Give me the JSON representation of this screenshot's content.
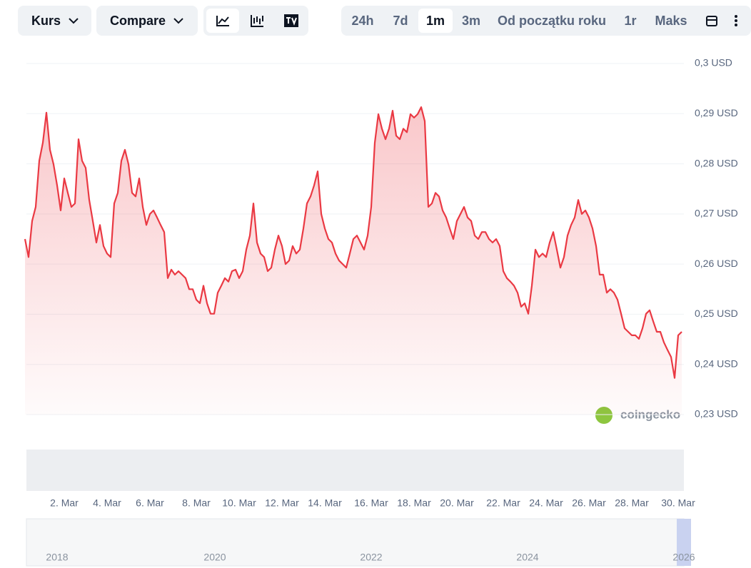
{
  "toolbar": {
    "price_menu": "Kurs",
    "compare_menu": "Compare",
    "ranges": [
      "24h",
      "7d",
      "1m",
      "3m",
      "Od początku roku",
      "1r",
      "Maks"
    ],
    "active_range": "1m"
  },
  "watermark": "coingecko",
  "navigator": {
    "labels": [
      "2018",
      "2020",
      "2022",
      "2024",
      "2026"
    ]
  },
  "chart_data": {
    "type": "line",
    "categories": [
      null,
      null,
      null,
      null,
      null,
      null,
      null,
      null,
      null,
      null,
      null,
      "2. Mar",
      null,
      null,
      null,
      null,
      null,
      null,
      null,
      null,
      null,
      null,
      null,
      "4. Mar",
      null,
      null,
      null,
      null,
      null,
      null,
      null,
      null,
      null,
      null,
      null,
      "6. Mar",
      null,
      null,
      null,
      null,
      null,
      null,
      null,
      null,
      null,
      null,
      null,
      null,
      "8. Mar",
      null,
      null,
      null,
      null,
      null,
      null,
      null,
      null,
      null,
      null,
      null,
      "10. Mar",
      null,
      null,
      null,
      null,
      null,
      null,
      null,
      null,
      null,
      null,
      null,
      "12. Mar",
      null,
      null,
      null,
      null,
      null,
      null,
      null,
      null,
      null,
      null,
      null,
      "14. Mar",
      null,
      null,
      null,
      null,
      null,
      null,
      null,
      null,
      null,
      null,
      null,
      null,
      "16. Mar",
      null,
      null,
      null,
      null,
      null,
      null,
      null,
      null,
      null,
      null,
      null,
      "18. Mar",
      null,
      null,
      null,
      null,
      null,
      null,
      null,
      null,
      null,
      null,
      null,
      "20. Mar",
      null,
      null,
      null,
      null,
      null,
      null,
      null,
      null,
      null,
      null,
      null,
      null,
      "22. Mar",
      null,
      null,
      null,
      null,
      null,
      null,
      null,
      null,
      null,
      null,
      null,
      "24. Mar",
      null,
      null,
      null,
      null,
      null,
      null,
      null,
      null,
      null,
      null,
      null,
      "26. Mar",
      null,
      null,
      null,
      null,
      null,
      null,
      null,
      null,
      null,
      null,
      null,
      "28. Mar",
      null,
      null,
      null,
      null,
      null,
      null,
      null,
      null,
      null,
      null,
      null,
      null,
      "30. Mar",
      null
    ],
    "series": [
      {
        "color": "#ea3943",
        "values": [
          0.265,
          0.2614,
          0.2686,
          0.2714,
          0.2806,
          0.2842,
          0.2902,
          0.2828,
          0.2799,
          0.2757,
          0.2707,
          0.2771,
          0.2742,
          0.2714,
          0.2721,
          0.2849,
          0.2806,
          0.2792,
          0.2728,
          0.2686,
          0.2643,
          0.2678,
          0.2636,
          0.2621,
          0.2614,
          0.2721,
          0.2742,
          0.2806,
          0.2828,
          0.2799,
          0.2742,
          0.2735,
          0.2771,
          0.2714,
          0.2678,
          0.27,
          0.2707,
          0.2693,
          0.2678,
          0.2664,
          0.2572,
          0.2589,
          0.2579,
          0.2586,
          0.2579,
          0.2572,
          0.255,
          0.255,
          0.2529,
          0.2522,
          0.2557,
          0.2522,
          0.2501,
          0.2501,
          0.2543,
          0.2557,
          0.2572,
          0.2565,
          0.2586,
          0.2589,
          0.2572,
          0.2586,
          0.2629,
          0.2657,
          0.2721,
          0.2643,
          0.2621,
          0.2614,
          0.2586,
          0.2593,
          0.2629,
          0.2657,
          0.2636,
          0.26,
          0.2607,
          0.2636,
          0.2621,
          0.2629,
          0.2671,
          0.2721,
          0.2735,
          0.2757,
          0.2785,
          0.27,
          0.2671,
          0.265,
          0.2643,
          0.2621,
          0.2607,
          0.26,
          0.2593,
          0.2621,
          0.265,
          0.2657,
          0.2643,
          0.2629,
          0.2657,
          0.2714,
          0.2842,
          0.2899,
          0.287,
          0.2849,
          0.287,
          0.2906,
          0.2856,
          0.2849,
          0.287,
          0.2863,
          0.2899,
          0.2892,
          0.2899,
          0.2913,
          0.2885,
          0.2714,
          0.2721,
          0.2742,
          0.2735,
          0.2707,
          0.2693,
          0.2671,
          0.265,
          0.2686,
          0.27,
          0.2714,
          0.2693,
          0.2686,
          0.2657,
          0.265,
          0.2664,
          0.2664,
          0.265,
          0.2643,
          0.265,
          0.2636,
          0.2586,
          0.2572,
          0.2565,
          0.2557,
          0.2543,
          0.2515,
          0.2522,
          0.2501,
          0.2557,
          0.2629,
          0.2614,
          0.2621,
          0.2614,
          0.2643,
          0.2664,
          0.2629,
          0.2593,
          0.2614,
          0.2657,
          0.2678,
          0.2693,
          0.2728,
          0.27,
          0.2707,
          0.2693,
          0.2671,
          0.2636,
          0.2579,
          0.2579,
          0.2543,
          0.255,
          0.2543,
          0.2529,
          0.2501,
          0.2472,
          0.2465,
          0.2458,
          0.2458,
          0.2451,
          0.2472,
          0.2501,
          0.2508,
          0.2486,
          0.2465,
          0.2465,
          0.2444,
          0.2429,
          0.2415,
          0.2373,
          0.2458,
          0.2465
        ]
      }
    ],
    "ylim": [
      0.23,
      0.3
    ],
    "yticks": [
      {
        "value": 0.3,
        "label": "0,3 USD"
      },
      {
        "value": 0.29,
        "label": "0,29 USD"
      },
      {
        "value": 0.28,
        "label": "0,28 USD"
      },
      {
        "value": 0.27,
        "label": "0,27 USD"
      },
      {
        "value": 0.26,
        "label": "0,26 USD"
      },
      {
        "value": 0.25,
        "label": "0,25 USD"
      },
      {
        "value": 0.24,
        "label": "0,24 USD"
      },
      {
        "value": 0.23,
        "label": "0,23 USD"
      }
    ],
    "grid": true
  }
}
